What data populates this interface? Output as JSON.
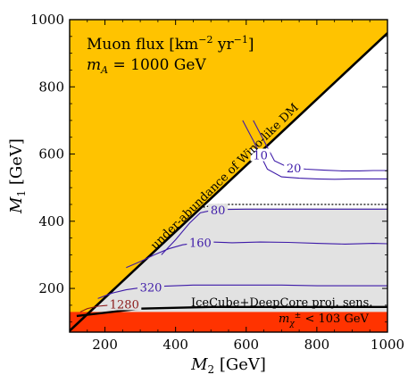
{
  "chart_data": {
    "type": "line",
    "xlabel_main": "M",
    "xlabel_sub": "2",
    "xlabel_unit": " [GeV]",
    "ylabel_main": "M",
    "ylabel_sub": "1",
    "ylabel_unit": " [GeV]",
    "xlim": [
      100,
      1000
    ],
    "ylim": [
      70,
      1000
    ],
    "xticks": [
      200,
      400,
      600,
      800,
      1000
    ],
    "yticks": [
      200,
      400,
      600,
      800,
      1000
    ],
    "legend_box": {
      "line1_a": "Muon flux [km",
      "line1_sup1": "−2",
      "line1_b": " yr",
      "line1_sup2": "−1",
      "line1_c": "]",
      "line2_a": "m",
      "line2_sub": "A",
      "line2_b": " = 1000 GeV"
    },
    "regions": [
      {
        "name": "under-abundance of Wino-like DM",
        "color": "#ffc300",
        "boundary": [
          [
            100,
            74
          ],
          [
            1000,
            960
          ]
        ]
      },
      {
        "name": "excluded chargino mass",
        "color": "#ff3300",
        "ymax": 130
      },
      {
        "name": "IceCube+DeepCore proj. sens.",
        "color": "#e2e2e2",
        "ymin": 130,
        "ymax": 440
      }
    ],
    "region_labels": {
      "under_abundance": "under-abundance of Wino-like DM",
      "sensitivity": "IceCube+DeepCore proj. sens.",
      "chargino_a": "m",
      "chargino_sub": "χ",
      "chargino_sup": "±",
      "chargino_b": " < 103 GeV"
    },
    "contours": [
      {
        "label": "10",
        "color": "#3d1aa8",
        "x": [
          590,
          620,
          660,
          700,
          750,
          800,
          850,
          900,
          950,
          1000
        ],
        "y": [
          700,
          640,
          555,
          532,
          528,
          526,
          525,
          526,
          526,
          526
        ]
      },
      {
        "label": "20",
        "color": "#3d1aa8",
        "x": [
          620,
          645,
          680,
          720,
          770,
          820,
          870,
          920,
          960,
          1000
        ],
        "y": [
          700,
          650,
          580,
          560,
          555,
          552,
          550,
          550,
          551,
          551
        ]
      },
      {
        "label": "80",
        "color": "#3d1aa8",
        "x": [
          360,
          400,
          440,
          470,
          500,
          540,
          600,
          700,
          800,
          900,
          1000
        ],
        "y": [
          300,
          345,
          395,
          425,
          432,
          435,
          436,
          436,
          436,
          436,
          436
        ]
      },
      {
        "label": "160",
        "color": "#3d1aa8",
        "x": [
          260,
          300,
          340,
          380,
          420,
          460,
          500,
          560,
          640,
          720,
          800,
          880,
          960,
          1000
        ],
        "y": [
          262,
          280,
          300,
          318,
          330,
          336,
          338,
          336,
          338,
          337,
          334,
          332,
          334,
          333
        ]
      },
      {
        "label": "320",
        "color": "#3d1aa8",
        "x": [
          180,
          220,
          260,
          300,
          350,
          400,
          450,
          500,
          600,
          700,
          800,
          900,
          1000
        ],
        "y": [
          170,
          186,
          196,
          202,
          206,
          208,
          210,
          210,
          210,
          210,
          208,
          208,
          208
        ]
      },
      {
        "label": "1280",
        "color": "#8b1a1a",
        "x": [
          130,
          150,
          180,
          210,
          240,
          270,
          300
        ],
        "y": [
          130,
          140,
          147,
          150,
          153,
          155,
          156
        ]
      }
    ],
    "contour_labels_pos": [
      {
        "text": "10"
      },
      {
        "text": "20"
      },
      {
        "text": "80"
      },
      {
        "text": "160"
      },
      {
        "text": "320"
      },
      {
        "text": "1280"
      }
    ]
  }
}
